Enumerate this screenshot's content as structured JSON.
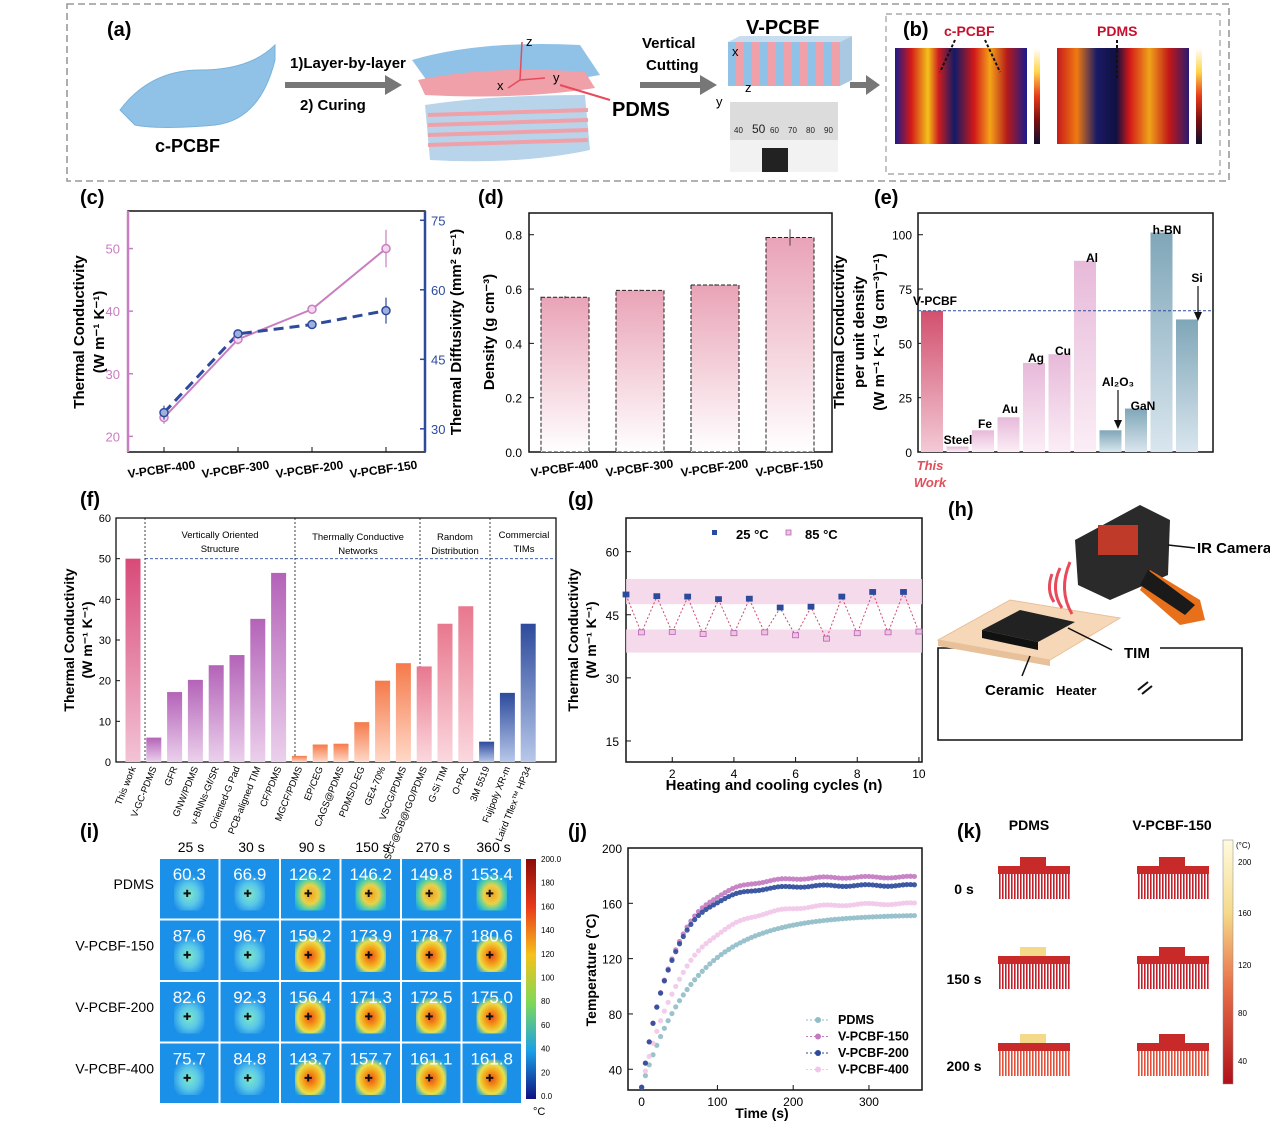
{
  "panel_labels": {
    "a": "(a)",
    "b": "(b)",
    "c": "(c)",
    "d": "(d)",
    "e": "(e)",
    "f": "(f)",
    "g": "(g)",
    "h": "(h)",
    "i": "(i)",
    "j": "(j)",
    "k": "(k)"
  },
  "panel_a": {
    "c_pcbf": "c-PCBF",
    "step1": "1)Layer-by-layer",
    "step2": "2) Curing",
    "pdms": "PDMS",
    "vertical": "Vertical",
    "cutting": "Cutting",
    "v_pcbf": "V-PCBF",
    "axis_x": "x",
    "axis_y": "y",
    "axis_z": "z",
    "ruler_ticks": [
      "40",
      "50",
      "60",
      "70",
      "80",
      "90"
    ]
  },
  "panel_b": {
    "c_pcbf": "c-PCBF",
    "pdms": "PDMS"
  },
  "chart_data": [
    {
      "id": "c",
      "type": "line",
      "categories": [
        "V-PCBF-400",
        "V-PCBF-300",
        "V-PCBF-200",
        "V-PCBF-150"
      ],
      "series": [
        {
          "name": "",
          "axis": "left",
          "values": [
            23,
            35.5,
            40.3,
            50
          ],
          "err": [
            1,
            0.8,
            0.5,
            3
          ],
          "color": "#c87ec0"
        },
        {
          "name": "",
          "axis": "right",
          "values": [
            33.5,
            50.5,
            52.5,
            55.5
          ],
          "err": [
            1.5,
            0.6,
            0.5,
            2.8
          ],
          "color": "#2d4a9c"
        }
      ],
      "ylabel_left": "Thermal Conductivity",
      "ylabel_left2": "(W m⁻¹ K⁻¹)",
      "ylabel_right": "Thermal Diffusivity (mm² s⁻¹)",
      "yticks_left": [
        "20",
        "30",
        "40",
        "50"
      ],
      "yticks_right": [
        "30",
        "45",
        "60",
        "75"
      ],
      "ylim_left": [
        17.5,
        56
      ],
      "ylim_right": [
        25,
        77
      ]
    },
    {
      "id": "d",
      "type": "bar",
      "categories": [
        "V-PCBF-400",
        "V-PCBF-300",
        "V-PCBF-200",
        "V-PCBF-150"
      ],
      "values": [
        0.57,
        0.595,
        0.615,
        0.79
      ],
      "err": [
        0.005,
        0.003,
        0.003,
        0.03
      ],
      "ylabel": "Density (g cm⁻³)",
      "yticks": [
        "0.0",
        "0.2",
        "0.4",
        "0.6",
        "0.8"
      ],
      "ylim": [
        0,
        0.88
      ]
    },
    {
      "id": "e",
      "type": "bar",
      "categories": [
        "V-PCBF",
        "Steel",
        "Fe",
        "Au",
        "Ag",
        "Cu",
        "Al",
        "Al₂O₃",
        "GaN",
        "h-BN",
        "Si"
      ],
      "values": [
        65,
        2.5,
        10,
        16,
        41,
        45,
        88,
        10,
        20,
        101,
        61
      ],
      "reference_line": 65,
      "ylabel1": "Thermal Conductivity",
      "ylabel2": "per unit density",
      "ylabel3": "(W m⁻¹ K⁻¹ (g cm⁻³)⁻¹)",
      "yticks": [
        "0",
        "25",
        "50",
        "75",
        "100"
      ],
      "ylim": [
        0,
        110
      ],
      "annotation": "This",
      "annotation2": "Work"
    },
    {
      "id": "f",
      "type": "bar",
      "categories": [
        "This work",
        "V-GC-PDMS",
        "GFR",
        "GNW/PDMS",
        "v-BNNs-Gf/SR",
        "Oriented-G Pad",
        "PCB-aligned TIM",
        "CF/PDMS",
        "MGCF/PDMS",
        "EP/CEG",
        "CAGS@PDMS",
        "PDMS/D-EG",
        "GE4-70%",
        "VSCG/PDMS",
        "SCF@GB@rGO/PDMS",
        "G-Si TIM",
        "O-PAC",
        "3M 5519",
        "Fujipoly XR-m",
        "Laird Tflex™ HP34"
      ],
      "values": [
        50,
        6,
        17.2,
        20.2,
        23.8,
        26.3,
        35.2,
        46.5,
        1.5,
        4.3,
        4.5,
        9.8,
        20,
        24.3,
        23.5,
        34,
        38.3,
        5,
        17,
        34
      ],
      "groups": [
        "Vertically Oriented",
        "Structure",
        "Thermally Conductive",
        "Networks",
        "Random",
        "Distribution",
        "Commercial",
        "TIMs"
      ],
      "ylabel": "Thermal Conductivity",
      "ylabel2": "(W m⁻¹ K⁻¹)",
      "yticks": [
        "0",
        "10",
        "20",
        "30",
        "40",
        "50",
        "60"
      ],
      "ylim": [
        0,
        60
      ]
    },
    {
      "id": "g",
      "type": "line",
      "x": [
        0.5,
        1,
        1.5,
        2,
        2.5,
        3,
        3.5,
        4,
        4.5,
        5,
        5.5,
        6,
        6.5,
        7,
        7.5,
        8,
        8.5,
        9,
        9.5,
        10
      ],
      "values": [
        49.7,
        40.7,
        49.3,
        40.8,
        49.2,
        40.3,
        48.6,
        40.5,
        48.7,
        40.7,
        46.6,
        40,
        46.8,
        39.2,
        49.2,
        40.5,
        50.3,
        40.7,
        50.3,
        40.9
      ],
      "series": [
        {
          "name": "25 °C"
        },
        {
          "name": "85 °C"
        }
      ],
      "bands": [
        [
          47.5,
          53.5
        ],
        [
          36,
          41.5
        ]
      ],
      "xlabel": "Heating and cooling cycles (n)",
      "ylabel": "Thermal Conductivity",
      "ylabel2": "(W m⁻¹ K⁻¹)",
      "xticks": [
        "2",
        "4",
        "6",
        "8",
        "10"
      ],
      "yticks": [
        "15",
        "30",
        "45",
        "60"
      ],
      "xlim": [
        0.5,
        10.1
      ],
      "ylim": [
        10,
        68
      ]
    },
    {
      "id": "j",
      "type": "scatter",
      "x_max": 360,
      "series": [
        {
          "name": "PDMS",
          "final": 152,
          "tau": 72,
          "color": "#8fbcc8"
        },
        {
          "name": "V-PCBF-150",
          "final": 179,
          "tau": 42,
          "color": "#c27ac0"
        },
        {
          "name": "V-PCBF-200",
          "final": 173,
          "tau": 40,
          "color": "#2b4a9a"
        },
        {
          "name": "V-PCBF-400",
          "final": 160,
          "tau": 56,
          "color": "#f1c6e8"
        }
      ],
      "start_temp": 27,
      "xlabel": "Time (s)",
      "ylabel": "Temperature (°C)",
      "xticks": [
        "0",
        "100",
        "200",
        "300"
      ],
      "yticks": [
        "40",
        "80",
        "120",
        "160",
        "200"
      ],
      "xlim": [
        -18,
        370
      ],
      "ylim": [
        25,
        200
      ]
    }
  ],
  "panel_h": {
    "ir_camera": "IR Camera",
    "tim": "TIM",
    "ceramic": "Ceramic",
    "heater": "Heater"
  },
  "panel_i": {
    "times": [
      "25 s",
      "30 s",
      "90 s",
      "150 s",
      "270 s",
      "360 s"
    ],
    "rows": [
      {
        "label": "PDMS",
        "values": [
          "60.3",
          "66.9",
          "126.2",
          "146.2",
          "149.8",
          "153.4"
        ]
      },
      {
        "label": "V-PCBF-150",
        "values": [
          "87.6",
          "96.7",
          "159.2",
          "173.9",
          "178.7",
          "180.6"
        ]
      },
      {
        "label": "V-PCBF-200",
        "values": [
          "82.6",
          "92.3",
          "156.4",
          "171.3",
          "172.5",
          "175.0"
        ]
      },
      {
        "label": "V-PCBF-400",
        "values": [
          "75.7",
          "84.8",
          "143.7",
          "157.7",
          "161.1",
          "161.8"
        ]
      }
    ],
    "colorbar_ticks": [
      "200.0",
      "180",
      "160",
      "140",
      "120",
      "100",
      "80",
      "60",
      "40",
      "20",
      "0.0"
    ],
    "unit": "°C"
  },
  "panel_k": {
    "col1": "PDMS",
    "col2": "V-PCBF-150",
    "rows": [
      "0 s",
      "150 s",
      "200 s"
    ],
    "colorbar_ticks": [
      "200",
      "160",
      "120",
      "80",
      "40"
    ],
    "unit": "(°C)"
  }
}
